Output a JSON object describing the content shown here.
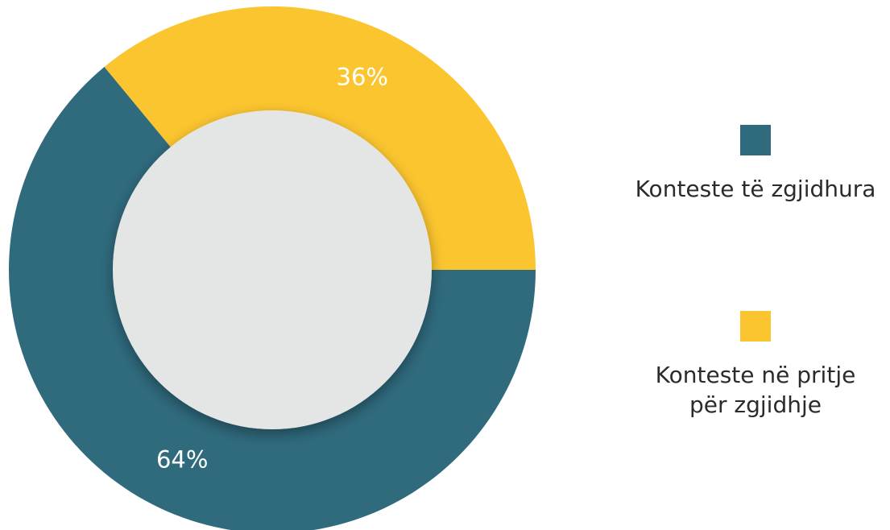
{
  "chart_data": {
    "type": "pie",
    "categories": [
      "Konteste të zgjidhura",
      "Konteste në pritje për zgjidhje"
    ],
    "values": [
      64,
      36
    ],
    "value_labels": [
      "64%",
      "36%"
    ],
    "colors": [
      "#2f6a7d",
      "#fbc52f"
    ],
    "legend": "right"
  }
}
